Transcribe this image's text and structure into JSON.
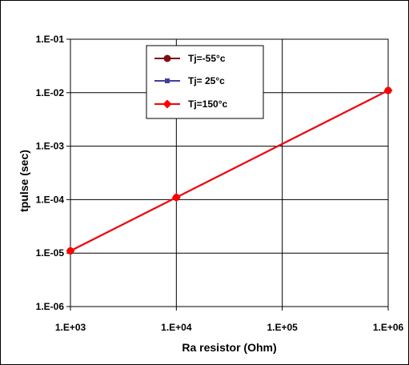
{
  "chart_data": {
    "type": "line",
    "xscale": "log",
    "yscale": "log",
    "xlabel": "Ra resistor (Ohm)",
    "ylabel": "tpulse (sec)",
    "xlim": [
      1000,
      1000000
    ],
    "ylim": [
      1e-06,
      0.1
    ],
    "x_ticks": [
      1000,
      10000,
      100000,
      1000000
    ],
    "x_tick_labels": [
      "1.E+03",
      "1.E+04",
      "1.E+05",
      "1.E+06"
    ],
    "y_ticks": [
      1e-06,
      1e-05,
      0.0001,
      0.001,
      0.01,
      0.1
    ],
    "y_tick_labels": [
      "1.E-06",
      "1.E-05",
      "1.E-04",
      "1.E-03",
      "1.E-02",
      "1.E-01"
    ],
    "grid": true,
    "legend_position": "top-center",
    "x": [
      1000,
      10000,
      1000000
    ],
    "series": [
      {
        "name": "Tj=-55°c",
        "values": [
          1.1e-05,
          0.00011,
          0.011
        ],
        "color": "#7b1010",
        "marker": "circle"
      },
      {
        "name": "Tj= 25°c",
        "values": [
          1.1e-05,
          0.00011,
          0.011
        ],
        "color": "#3f3f9f",
        "marker": "square"
      },
      {
        "name": "Tj=150°c",
        "values": [
          1.1e-05,
          0.00011,
          0.011
        ],
        "color": "#ff0000",
        "marker": "diamond"
      }
    ]
  }
}
